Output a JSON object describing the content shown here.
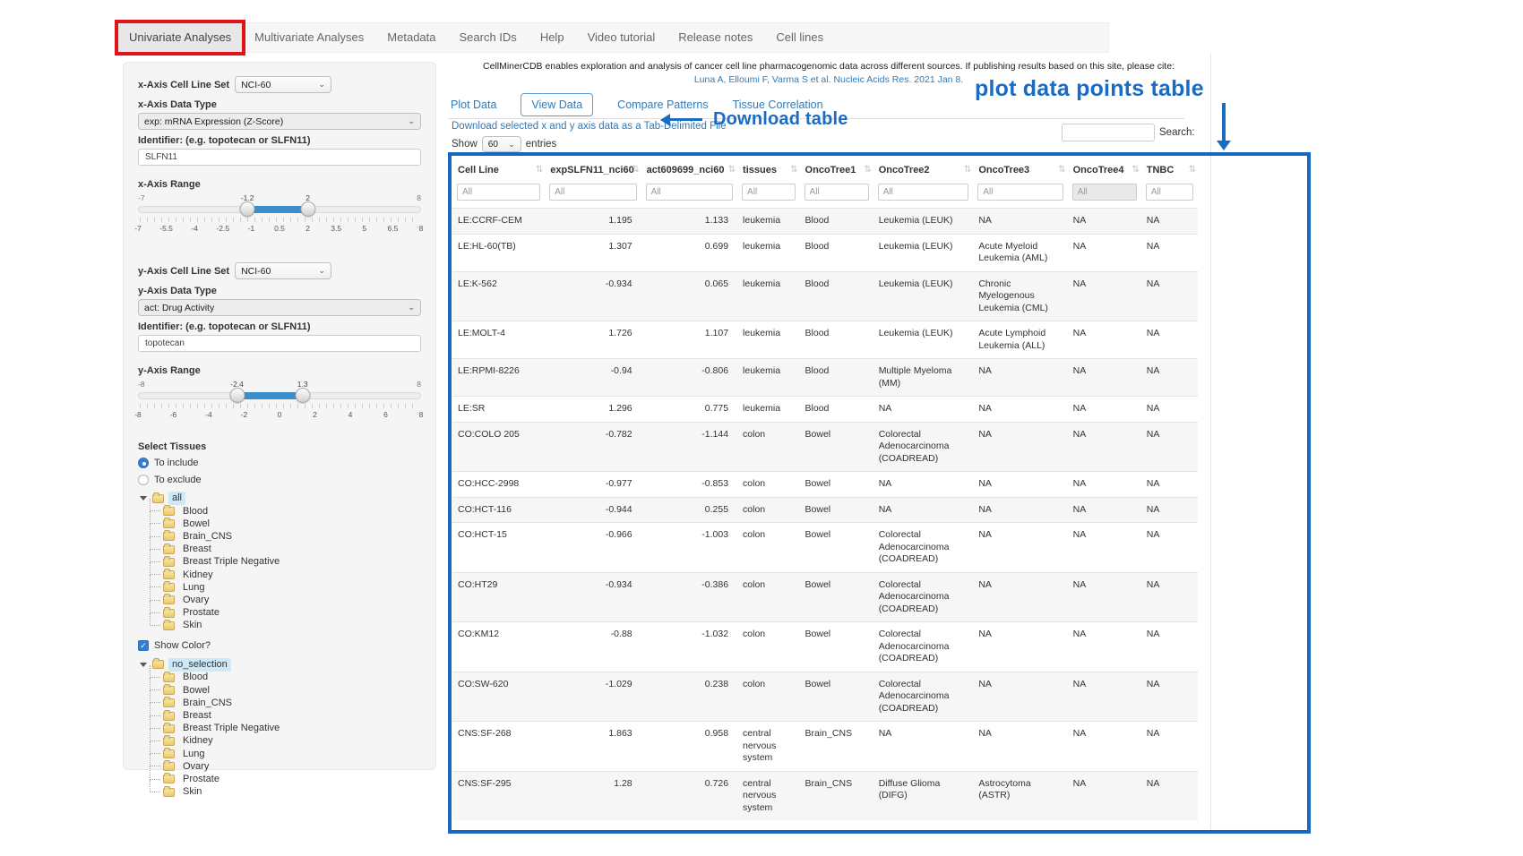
{
  "navbar": {
    "items": [
      {
        "label": "Univariate Analyses",
        "active": true
      },
      {
        "label": "Multivariate Analyses",
        "active": false
      },
      {
        "label": "Metadata",
        "active": false
      },
      {
        "label": "Search IDs",
        "active": false
      },
      {
        "label": "Help",
        "active": false
      },
      {
        "label": "Video tutorial",
        "active": false
      },
      {
        "label": "Release notes",
        "active": false
      },
      {
        "label": "Cell lines",
        "active": false
      }
    ]
  },
  "sidebar": {
    "x_cellline_label": "x-Axis Cell Line Set",
    "x_cellline_value": "NCI-60",
    "x_datatype_label": "x-Axis Data Type",
    "x_datatype_value": "exp: mRNA Expression (Z-Score)",
    "x_identifier_label": "Identifier: (e.g. topotecan or SLFN11)",
    "x_identifier_value": "SLFN11",
    "x_range_label": "x-Axis Range",
    "x_slider": {
      "min": -7,
      "max": 8,
      "from": -1.2,
      "to": 2,
      "min_label": "-7",
      "max_label": "8",
      "from_label": "-1.2",
      "to_label": "2",
      "ticks": [
        "-7",
        "-5.5",
        "-4",
        "-2.5",
        "-1",
        "0.5",
        "2",
        "3.5",
        "5",
        "6.5",
        "8"
      ]
    },
    "y_cellline_label": "y-Axis Cell Line Set",
    "y_cellline_value": "NCI-60",
    "y_datatype_label": "y-Axis Data Type",
    "y_datatype_value": "act: Drug Activity",
    "y_identifier_label": "Identifier: (e.g. topotecan or SLFN11)",
    "y_identifier_value": "topotecan",
    "y_range_label": "y-Axis Range",
    "y_slider": {
      "min": -8,
      "max": 8,
      "from": -2.4,
      "to": 1.3,
      "min_label": "-8",
      "max_label": "8",
      "from_label": "-2.4",
      "to_label": "1.3",
      "ticks": [
        "-8",
        "-6",
        "-4",
        "-2",
        "0",
        "2",
        "4",
        "6",
        "8"
      ]
    },
    "select_tissues_label": "Select Tissues",
    "radio_include": "To include",
    "radio_exclude": "To exclude",
    "tissue_tree": {
      "root": "all",
      "children": [
        "Blood",
        "Bowel",
        "Brain_CNS",
        "Breast",
        "Breast Triple Negative",
        "Kidney",
        "Lung",
        "Ovary",
        "Prostate",
        "Skin"
      ]
    },
    "show_color_label": "Show Color?",
    "color_tree": {
      "root": "no_selection",
      "children": [
        "Blood",
        "Bowel",
        "Brain_CNS",
        "Breast",
        "Breast Triple Negative",
        "Kidney",
        "Lung",
        "Ovary",
        "Prostate",
        "Skin"
      ]
    }
  },
  "main": {
    "intro": "CellMinerCDB enables exploration and analysis of cancer cell line pharmacogenomic data across different sources. If publishing results based on this site, please cite:",
    "citation": "Luna A, Elloumi F, Varma S et al. Nucleic Acids Res. 2021 Jan 8.",
    "tabs": [
      {
        "label": "Plot Data",
        "active": false
      },
      {
        "label": "View Data",
        "active": true
      },
      {
        "label": "Compare Patterns",
        "active": false
      },
      {
        "label": "Tissue Correlation",
        "active": false
      }
    ],
    "download_link": "Download selected x and y axis data as a Tab-Delimited File",
    "show_label": "Show",
    "page_size": "60",
    "entries_label": "entries",
    "search_label": "Search:",
    "table": {
      "columns": [
        "Cell Line",
        "expSLFN11_nci60",
        "act609699_nci60",
        "tissues",
        "OncoTree1",
        "OncoTree2",
        "OncoTree3",
        "OncoTree4",
        "TNBC"
      ],
      "filter_placeholder": "All",
      "rows": [
        [
          "LE:CCRF-CEM",
          "1.195",
          "1.133",
          "leukemia",
          "Blood",
          "Leukemia (LEUK)",
          "NA",
          "NA",
          "NA"
        ],
        [
          "LE:HL-60(TB)",
          "1.307",
          "0.699",
          "leukemia",
          "Blood",
          "Leukemia (LEUK)",
          "Acute Myeloid Leukemia (AML)",
          "NA",
          "NA"
        ],
        [
          "LE:K-562",
          "-0.934",
          "0.065",
          "leukemia",
          "Blood",
          "Leukemia (LEUK)",
          "Chronic Myelogenous Leukemia (CML)",
          "NA",
          "NA"
        ],
        [
          "LE:MOLT-4",
          "1.726",
          "1.107",
          "leukemia",
          "Blood",
          "Leukemia (LEUK)",
          "Acute Lymphoid Leukemia (ALL)",
          "NA",
          "NA"
        ],
        [
          "LE:RPMI-8226",
          "-0.94",
          "-0.806",
          "leukemia",
          "Blood",
          "Multiple Myeloma (MM)",
          "NA",
          "NA",
          "NA"
        ],
        [
          "LE:SR",
          "1.296",
          "0.775",
          "leukemia",
          "Blood",
          "NA",
          "NA",
          "NA",
          "NA"
        ],
        [
          "CO:COLO 205",
          "-0.782",
          "-1.144",
          "colon",
          "Bowel",
          "Colorectal Adenocarcinoma (COADREAD)",
          "NA",
          "NA",
          "NA"
        ],
        [
          "CO:HCC-2998",
          "-0.977",
          "-0.853",
          "colon",
          "Bowel",
          "NA",
          "NA",
          "NA",
          "NA"
        ],
        [
          "CO:HCT-116",
          "-0.944",
          "0.255",
          "colon",
          "Bowel",
          "NA",
          "NA",
          "NA",
          "NA"
        ],
        [
          "CO:HCT-15",
          "-0.966",
          "-1.003",
          "colon",
          "Bowel",
          "Colorectal Adenocarcinoma (COADREAD)",
          "NA",
          "NA",
          "NA"
        ],
        [
          "CO:HT29",
          "-0.934",
          "-0.386",
          "colon",
          "Bowel",
          "Colorectal Adenocarcinoma (COADREAD)",
          "NA",
          "NA",
          "NA"
        ],
        [
          "CO:KM12",
          "-0.88",
          "-1.032",
          "colon",
          "Bowel",
          "Colorectal Adenocarcinoma (COADREAD)",
          "NA",
          "NA",
          "NA"
        ],
        [
          "CO:SW-620",
          "-1.029",
          "0.238",
          "colon",
          "Bowel",
          "Colorectal Adenocarcinoma (COADREAD)",
          "NA",
          "NA",
          "NA"
        ],
        [
          "CNS:SF-268",
          "1.863",
          "0.958",
          "central nervous system",
          "Brain_CNS",
          "NA",
          "NA",
          "NA",
          "NA"
        ],
        [
          "CNS:SF-295",
          "1.28",
          "0.726",
          "central nervous system",
          "Brain_CNS",
          "Diffuse Glioma (DIFG)",
          "Astrocytoma (ASTR)",
          "NA",
          "NA"
        ]
      ]
    }
  },
  "annotations": {
    "download": "Download table",
    "plot_table": "plot data points table",
    "accent_blue": "#1a6bc4",
    "accent_red": "#e0151c"
  }
}
